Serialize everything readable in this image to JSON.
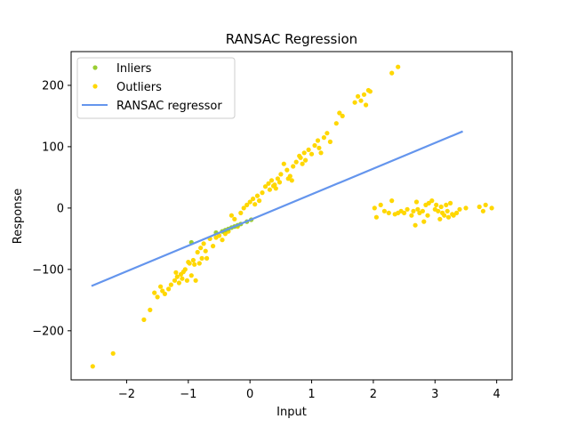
{
  "chart_data": {
    "type": "scatter",
    "title": "RANSAC Regression",
    "xlabel": "Input",
    "ylabel": "Response",
    "xlim": [
      -2.9,
      4.25
    ],
    "ylim": [
      -280,
      255
    ],
    "xticks": [
      -2,
      -1,
      0,
      1,
      2,
      3,
      4
    ],
    "xtick_labels": [
      "−2",
      "−1",
      "0",
      "1",
      "2",
      "3",
      "4"
    ],
    "yticks": [
      -200,
      -100,
      0,
      100,
      200
    ],
    "ytick_labels": [
      "−200",
      "−100",
      "0",
      "100",
      "200"
    ],
    "grid": false,
    "legend": {
      "placement": "top-left",
      "entries": [
        {
          "label": "Inliers",
          "kind": "marker",
          "color": "#9acd32"
        },
        {
          "label": "Outliers",
          "kind": "marker",
          "color": "#ffd700"
        },
        {
          "label": "RANSAC regressor",
          "kind": "line",
          "color": "#6495ed"
        }
      ]
    },
    "series": [
      {
        "name": "Inliers",
        "color": "#9acd32",
        "kind": "scatter",
        "x": [
          -0.95,
          -0.55,
          -0.45,
          -0.4,
          -0.35,
          -0.3,
          -0.25,
          -0.2,
          -0.15,
          -0.05,
          0.02
        ],
        "y": [
          -56,
          -40,
          -38,
          -36,
          -34,
          -32,
          -30,
          -28,
          -26,
          -22,
          -19
        ]
      },
      {
        "name": "Outliers",
        "color": "#ffd700",
        "kind": "scatter",
        "x": [
          -2.55,
          -2.22,
          -1.72,
          -1.62,
          -1.55,
          -1.5,
          -1.45,
          -1.42,
          -1.38,
          -1.32,
          -1.28,
          -1.22,
          -1.2,
          -1.18,
          -1.15,
          -1.12,
          -1.1,
          -1.08,
          -1.05,
          -1.02,
          -1.0,
          -0.98,
          -0.95,
          -0.92,
          -0.9,
          -0.88,
          -0.85,
          -0.82,
          -0.8,
          -0.78,
          -0.75,
          -0.72,
          -0.7,
          -0.65,
          -0.6,
          -0.55,
          -0.5,
          -0.45,
          -0.4,
          -0.35,
          -0.3,
          -0.25,
          -0.2,
          -0.15,
          -0.1,
          -0.05,
          0.0,
          0.05,
          0.08,
          0.12,
          0.15,
          0.2,
          0.25,
          0.3,
          0.32,
          0.35,
          0.38,
          0.4,
          0.42,
          0.45,
          0.48,
          0.5,
          0.55,
          0.6,
          0.62,
          0.65,
          0.68,
          0.7,
          0.75,
          0.8,
          0.82,
          0.85,
          0.88,
          0.9,
          0.95,
          1.0,
          1.05,
          1.1,
          1.12,
          1.15,
          1.2,
          1.25,
          1.3,
          1.4,
          1.45,
          1.5,
          1.7,
          1.75,
          1.8,
          1.85,
          1.88,
          1.92,
          1.95,
          2.3,
          2.4,
          2.02,
          2.05,
          2.12,
          2.18,
          2.25,
          2.3,
          2.35,
          2.4,
          2.45,
          2.5,
          2.55,
          2.62,
          2.65,
          2.68,
          2.7,
          2.72,
          2.75,
          2.8,
          2.82,
          2.85,
          2.88,
          2.9,
          2.95,
          3.0,
          3.02,
          3.05,
          3.08,
          3.1,
          3.12,
          3.15,
          3.18,
          3.2,
          3.22,
          3.25,
          3.28,
          3.3,
          3.35,
          3.4,
          3.5,
          3.72,
          3.78,
          3.82,
          3.92
        ],
        "y": [
          -258,
          -237,
          -182,
          -166,
          -138,
          -145,
          -128,
          -135,
          -140,
          -132,
          -125,
          -118,
          -105,
          -112,
          -122,
          -108,
          -115,
          -104,
          -100,
          -118,
          -88,
          -90,
          -110,
          -85,
          -92,
          -118,
          -72,
          -90,
          -65,
          -82,
          -58,
          -70,
          -82,
          -50,
          -62,
          -48,
          -45,
          -52,
          -42,
          -38,
          -12,
          -18,
          -30,
          -8,
          0,
          5,
          10,
          15,
          6,
          20,
          12,
          25,
          35,
          40,
          30,
          45,
          36,
          38,
          32,
          48,
          42,
          55,
          72,
          62,
          48,
          52,
          45,
          68,
          75,
          85,
          82,
          72,
          90,
          78,
          95,
          88,
          102,
          110,
          98,
          90,
          115,
          122,
          108,
          138,
          155,
          150,
          172,
          182,
          175,
          185,
          168,
          192,
          190,
          220,
          230,
          0,
          -15,
          5,
          -5,
          -8,
          12,
          -10,
          -8,
          -5,
          -8,
          -2,
          -12,
          -5,
          -28,
          10,
          -2,
          -8,
          -5,
          -22,
          5,
          -12,
          8,
          12,
          -2,
          5,
          -5,
          -18,
          2,
          -8,
          -12,
          5,
          -5,
          -15,
          8,
          -10,
          -12,
          -8,
          -2,
          0,
          2,
          -5,
          5,
          0
        ]
      },
      {
        "name": "RANSAC regressor",
        "color": "#6495ed",
        "kind": "line",
        "x": [
          -2.57,
          3.45
        ],
        "y": [
          -127,
          125
        ]
      }
    ]
  }
}
